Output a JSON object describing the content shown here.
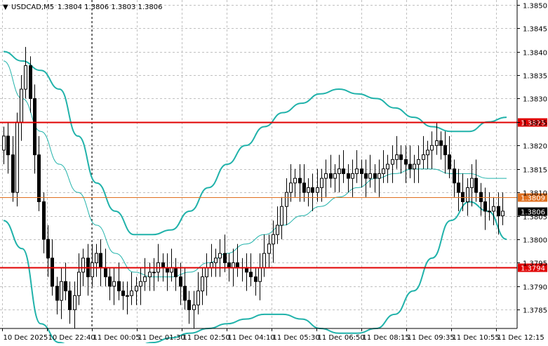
{
  "header": {
    "dropdown_icon": "triangle-down-icon",
    "symbol_timeframe": "USDCAD,M5",
    "ohlc": "1.3804 1.3806 1.3803 1.3806"
  },
  "colors": {
    "background": "#ffffff",
    "grid": "#c0c0c0",
    "candle": "#000000",
    "bollinger": "#20b2aa",
    "level_line": "#e00000",
    "price_line": "#e07020",
    "current_price_box": "#000000"
  },
  "chart_data": {
    "type": "candlestick",
    "symbol": "USDCAD",
    "timeframe": "M5",
    "ylim": [
      1.3781,
      1.3851
    ],
    "y_ticks": [
      "1.3850",
      "1.3845",
      "1.3840",
      "1.3835",
      "1.3830",
      "1.3825",
      "1.3820",
      "1.3815",
      "1.3810",
      "1.3805",
      "1.3800",
      "1.3795",
      "1.3790",
      "1.3785"
    ],
    "x_ticks": [
      "10 Dec 2025",
      "10 Dec 22:40",
      "11 Dec 00:05",
      "11 Dec 01:30",
      "11 Dec 02:50",
      "11 Dec 04:10",
      "11 Dec 05:30",
      "11 Dec 06:50",
      "11 Dec 08:15",
      "11 Dec 09:35",
      "11 Dec 10:55",
      "11 Dec 12:15"
    ],
    "grid": true,
    "horizontal_levels": [
      {
        "label": "1.3825",
        "value": 1.3825,
        "color": "#e00000"
      },
      {
        "label": "1.3794",
        "value": 1.3794,
        "color": "#e00000"
      }
    ],
    "price_line": {
      "label": "1.3809",
      "value": 1.3809
    },
    "current_price": {
      "label": "1.3806",
      "value": 1.3806
    },
    "closes": [
      1.3822,
      1.3818,
      1.381,
      1.3825,
      1.3832,
      1.3837,
      1.383,
      1.3818,
      1.3808,
      1.38,
      1.3796,
      1.379,
      1.3787,
      1.3791,
      1.3789,
      1.3785,
      1.3788,
      1.3793,
      1.3796,
      1.3792,
      1.3795,
      1.3797,
      1.3794,
      1.3792,
      1.379,
      1.3791,
      1.3789,
      1.3788,
      1.3788,
      1.3789,
      1.379,
      1.3791,
      1.3792,
      1.3793,
      1.3793,
      1.3795,
      1.3794,
      1.3793,
      1.3794,
      1.3792,
      1.379,
      1.3787,
      1.3785,
      1.3786,
      1.3789,
      1.3792,
      1.3794,
      1.3795,
      1.3796,
      1.3797,
      1.3795,
      1.3794,
      1.3795,
      1.3794,
      1.3794,
      1.3793,
      1.3792,
      1.3791,
      1.3794,
      1.3797,
      1.3799,
      1.3801,
      1.3803,
      1.3807,
      1.381,
      1.3812,
      1.3813,
      1.3812,
      1.381,
      1.3811,
      1.381,
      1.3811,
      1.3813,
      1.3814,
      1.3813,
      1.3814,
      1.3815,
      1.3814,
      1.3813,
      1.3814,
      1.3815,
      1.3814,
      1.3813,
      1.3814,
      1.3813,
      1.3814,
      1.3815,
      1.3816,
      1.3817,
      1.3818,
      1.3817,
      1.3816,
      1.3815,
      1.3816,
      1.3817,
      1.3818,
      1.3819,
      1.382,
      1.3821,
      1.382,
      1.3818,
      1.3815,
      1.3812,
      1.381,
      1.3808,
      1.3811,
      1.3813,
      1.381,
      1.3808,
      1.3806,
      1.3806,
      1.3807,
      1.3805,
      1.3806
    ],
    "bollinger": {
      "upper": [
        1.384,
        1.3838,
        1.3836,
        1.3832,
        1.3822,
        1.3812,
        1.3806,
        1.3801,
        1.3801,
        1.3802,
        1.3806,
        1.3811,
        1.3816,
        1.382,
        1.3824,
        1.3827,
        1.3829,
        1.3831,
        1.3832,
        1.3831,
        1.383,
        1.3828,
        1.3826,
        1.3824,
        1.3823,
        1.3823,
        1.3825,
        1.3826
      ],
      "middle": [
        1.3838,
        1.383,
        1.3823,
        1.3816,
        1.381,
        1.3803,
        1.3797,
        1.3793,
        1.3792,
        1.3792,
        1.3793,
        1.3795,
        1.3797,
        1.3799,
        1.3801,
        1.3803,
        1.3805,
        1.3807,
        1.3809,
        1.3811,
        1.3813,
        1.3814,
        1.3815,
        1.3815,
        1.3814,
        1.3814,
        1.3813,
        1.3813
      ],
      "lower": [
        1.3804,
        1.3798,
        1.3782,
        1.3778,
        1.3776,
        1.3775,
        1.3776,
        1.3777,
        1.3778,
        1.3779,
        1.378,
        1.3781,
        1.3782,
        1.3783,
        1.3784,
        1.3784,
        1.3783,
        1.3781,
        1.378,
        1.378,
        1.3781,
        1.3784,
        1.3789,
        1.3796,
        1.3804,
        1.3808,
        1.3806,
        1.38
      ]
    }
  }
}
